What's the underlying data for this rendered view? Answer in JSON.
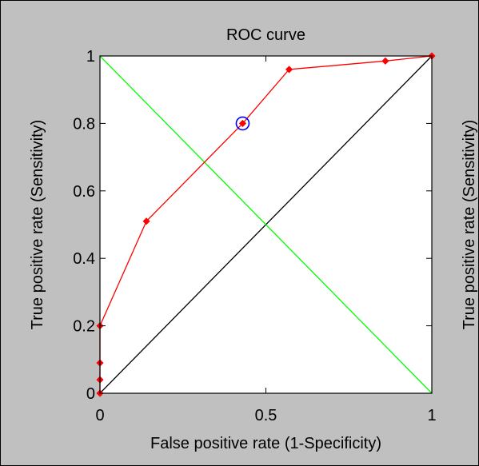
{
  "colors": {
    "figure_background": "#c0c0c0",
    "axes_background": "#ffffff",
    "roc_line": "#ff0000",
    "diagonal_line": "#000000",
    "anti_diagonal_line": "#00ff00",
    "optimal_marker": "#0000ff"
  },
  "chart_data": {
    "type": "line",
    "title": "ROC curve",
    "xlabel": "False positive rate (1-Specificity)",
    "ylabel": "True positive rate (Sensitivity)",
    "right_clipped_ylabel": "True positive rate (Sensitivity)",
    "xlim": [
      0,
      1
    ],
    "ylim": [
      0,
      1
    ],
    "grid": false,
    "x_ticks": [
      {
        "value": 0,
        "label": "0"
      },
      {
        "value": 0.5,
        "label": "0.5"
      },
      {
        "value": 1,
        "label": "1"
      }
    ],
    "y_ticks": [
      {
        "value": 0,
        "label": "0"
      },
      {
        "value": 0.2,
        "label": "0.2"
      },
      {
        "value": 0.4,
        "label": "0.4"
      },
      {
        "value": 0.6,
        "label": "0.6"
      },
      {
        "value": 0.8,
        "label": "0.8"
      },
      {
        "value": 1,
        "label": "1"
      }
    ],
    "series": [
      {
        "color": "#ff0000",
        "marker": "diamond",
        "points": [
          [
            0,
            0
          ],
          [
            0,
            0.04
          ],
          [
            0,
            0.09
          ],
          [
            0,
            0.2
          ],
          [
            0.14,
            0.51
          ],
          [
            0.43,
            0.8
          ],
          [
            0.57,
            0.96
          ],
          [
            0.86,
            0.985
          ],
          [
            1,
            1
          ]
        ]
      }
    ],
    "reference_lines": [
      {
        "kind": "chance-diagonal",
        "color": "#000000",
        "from": [
          0,
          0
        ],
        "to": [
          1,
          1
        ]
      },
      {
        "kind": "anti-diagonal",
        "color": "#00ff00",
        "from": [
          0,
          1
        ],
        "to": [
          1,
          0
        ]
      }
    ],
    "optimal_point": {
      "x": 0.43,
      "y": 0.8,
      "color": "#0000ff"
    }
  }
}
